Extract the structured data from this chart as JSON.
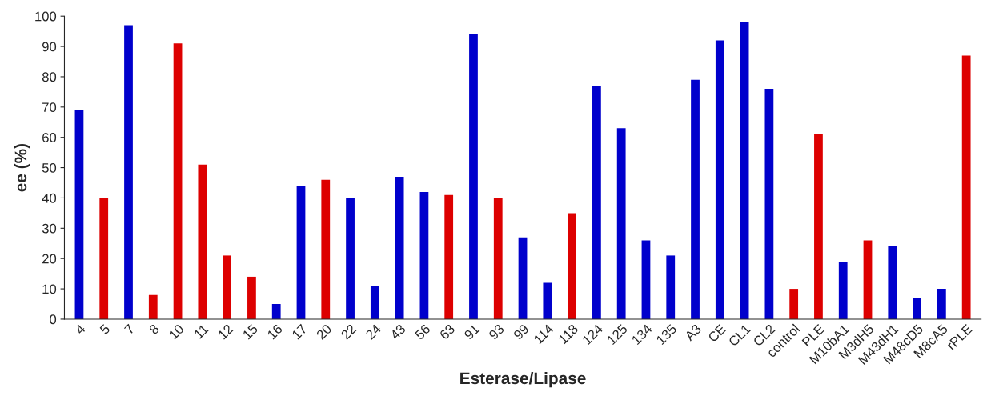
{
  "chart_data": {
    "type": "bar",
    "xlabel": "Esterase/Lipase",
    "ylabel": "ee (%)",
    "categories": [
      "4",
      "5",
      "7",
      "8",
      "10",
      "11",
      "12",
      "15",
      "16",
      "17",
      "20",
      "22",
      "24",
      "43",
      "56",
      "63",
      "91",
      "93",
      "99",
      "114",
      "118",
      "124",
      "125",
      "134",
      "135",
      "A3",
      "CE",
      "CL1",
      "CL2",
      "control",
      "PLE",
      "M10bA1",
      "M3dH5",
      "M43dH1",
      "M48cD5",
      "M8cA5",
      "rPLE"
    ],
    "values": [
      69,
      40,
      97,
      8,
      91,
      51,
      21,
      14,
      5,
      44,
      46,
      40,
      11,
      47,
      42,
      41,
      94,
      40,
      27,
      12,
      35,
      77,
      63,
      26,
      21,
      79,
      92,
      98,
      76,
      10,
      61,
      19,
      26,
      24,
      7,
      10,
      87
    ],
    "colors": [
      "#0000cc",
      "#dd0000",
      "#0000cc",
      "#dd0000",
      "#dd0000",
      "#dd0000",
      "#dd0000",
      "#dd0000",
      "#0000cc",
      "#0000cc",
      "#dd0000",
      "#0000cc",
      "#0000cc",
      "#0000cc",
      "#0000cc",
      "#dd0000",
      "#0000cc",
      "#dd0000",
      "#0000cc",
      "#0000cc",
      "#dd0000",
      "#0000cc",
      "#0000cc",
      "#0000cc",
      "#0000cc",
      "#0000cc",
      "#0000cc",
      "#0000cc",
      "#0000cc",
      "#dd0000",
      "#dd0000",
      "#0000cc",
      "#dd0000",
      "#0000cc",
      "#0000cc",
      "#0000cc",
      "#dd0000"
    ],
    "ylim": [
      0,
      100
    ],
    "yticks": [
      0,
      10,
      20,
      30,
      40,
      50,
      60,
      70,
      80,
      90,
      100
    ],
    "grid": false,
    "legend": false
  }
}
